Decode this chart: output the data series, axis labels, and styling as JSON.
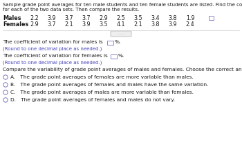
{
  "title_line1": "Sample grade point averages for ten male students and ten female students are listed. Find the coefficient of variation",
  "title_line2": "for each of the two data sets. Then compare the results.",
  "males_label": "Males",
  "females_label": "Females",
  "males_values": [
    "2.2",
    "3.9",
    "3.7",
    "3.7",
    "2.9",
    "2.5",
    "3.5",
    "3.4",
    "3.8",
    "1.9"
  ],
  "females_values": [
    "2.9",
    "3.7",
    "2.1",
    "3.9",
    "3.5",
    "4.1",
    "2.1",
    "3.8",
    "3.9",
    "2.4"
  ],
  "line1": "The coefficient of variation for males is",
  "line1b": "%.",
  "line2": "(Round to one decimal place as needed.)",
  "line3": "The coefficient of variation for females is",
  "line3b": "%.",
  "line4": "(Round to one decimal place as needed.)",
  "line5": "Compare the variability of grade point averages of males and females. Choose the correct answer below.",
  "opt_a": "A.   The grade point averages of females are more variable than males.",
  "opt_b": "B.   The grade point averages of females and males have the same variation.",
  "opt_c": "C.   The grade point averages of males are more variable than females.",
  "opt_d": "D.   The grade point averages of females and males do not vary.",
  "bg_color": "#ffffff",
  "text_color": "#1a1a1a",
  "blue_color": "#4444bb",
  "box_edge_color": "#8888cc",
  "circle_edge_color": "#7777bb",
  "sep_color": "#cccccc",
  "ellipsis_bg": "#eeeeee",
  "ellipsis_edge": "#aaaaaa",
  "ellipsis_text": "#888888"
}
